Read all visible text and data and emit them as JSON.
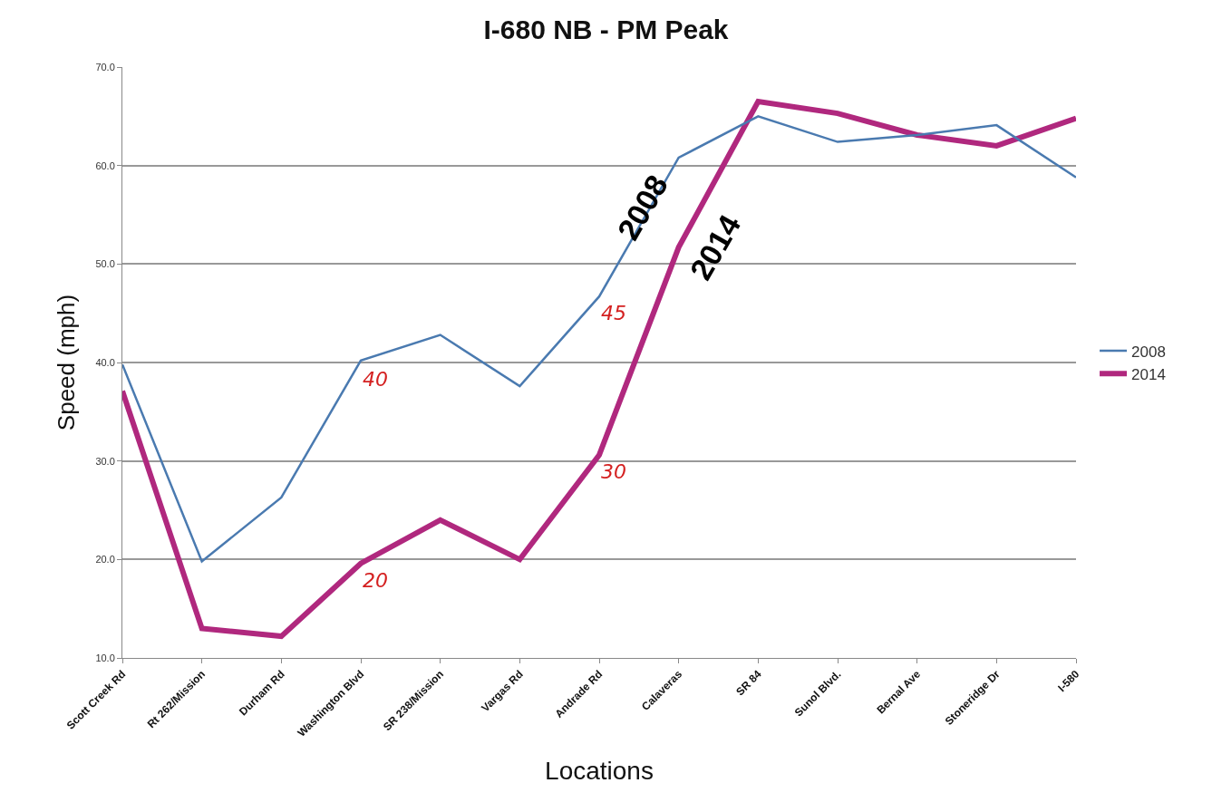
{
  "chart_data": {
    "type": "line",
    "title": "I-680 NB - PM Peak",
    "xlabel": "Locations",
    "ylabel": "Speed (mph)",
    "categories": [
      "Scott Creek Rd",
      "Rt 262/Mission",
      "Durham Rd",
      "Washington Blvd",
      "SR 238/Mission",
      "Vargas Rd",
      "Andrade Rd",
      "Calaveras",
      "SR 84",
      "Sunol Blvd.",
      "Bernal Ave",
      "Stoneridge Dr",
      "I-580"
    ],
    "series": [
      {
        "name": "2008",
        "color": "#4a7ab0",
        "values": [
          39.8,
          19.8,
          26.3,
          40.2,
          42.8,
          37.6,
          46.7,
          60.8,
          65.0,
          62.4,
          63.1,
          64.1,
          58.8
        ]
      },
      {
        "name": "2014",
        "color": "#b0287e",
        "values": [
          37.1,
          13.0,
          12.2,
          19.6,
          24.0,
          20.0,
          30.6,
          51.7,
          66.5,
          65.3,
          63.1,
          62.0,
          64.8
        ]
      }
    ],
    "ylim": [
      10,
      70
    ],
    "yticks": [
      {
        "value": 10,
        "label": "10.0"
      },
      {
        "value": 20,
        "label": "20.0"
      },
      {
        "value": 30,
        "label": "30.0"
      },
      {
        "value": 40,
        "label": "40.0"
      },
      {
        "value": 50,
        "label": "50.0"
      },
      {
        "value": 60,
        "label": "60.0"
      },
      {
        "value": 70,
        "label": "70.0"
      }
    ],
    "annotations": [
      {
        "text": "2008",
        "x": "Calaveras",
        "y": 60.8
      },
      {
        "text": "2014",
        "x": "Calaveras",
        "y": 51.7
      },
      {
        "text": "40",
        "x": "Washington Blvd",
        "y": 40
      },
      {
        "text": "20",
        "x": "Washington Blvd",
        "y": 19.6
      },
      {
        "text": "45",
        "x": "Andrade Rd",
        "y": 46.7
      },
      {
        "text": "30",
        "x": "Andrade Rd",
        "y": 30.6
      }
    ],
    "grid": "y",
    "legend": "right",
    "marker": "none",
    "line_style": "solid"
  }
}
